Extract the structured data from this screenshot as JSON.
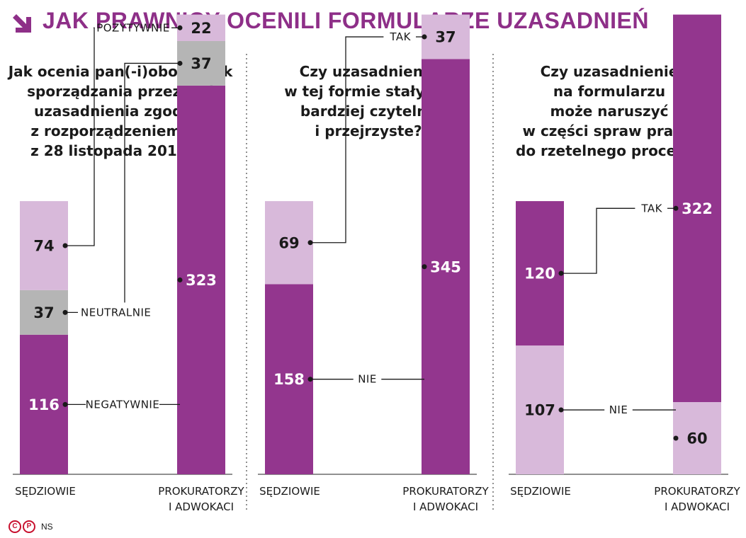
{
  "header": {
    "title": "JAK PRAWNICY OCENILI FORMULARZE UZASADNIEŃ"
  },
  "colors": {
    "purple": "#93368e",
    "light_purple": "#d8b9da",
    "gray": "#b5b5b5",
    "title_purple": "#8e2f88",
    "logo_red": "#c8102e"
  },
  "footer": {
    "logo_left": "C",
    "logo_right": "P",
    "source": "NS"
  },
  "chart_data": [
    {
      "type": "bar",
      "stacked": true,
      "title": "Jak ocenia pan(-i)obowiązek sporządzania przez sąd uzasadnienia zgodnie z rozporządzeniem MS z 28 listopada 2019 r.?",
      "title_lines": [
        "Jak ocenia pan(-i)obowiązek",
        "sporządzania przez sąd",
        "uzasadnienia zgodnie",
        "z rozporządzeniem MS",
        "z 28 listopada 2019 r.?"
      ],
      "categories": [
        "SĘDZIOWIE",
        "PROKURATORZY I ADWOKACI"
      ],
      "category_lines": [
        [
          "SĘDZIOWIE"
        ],
        [
          "PROKURATORZY",
          "I ADWOKACI"
        ]
      ],
      "series": [
        {
          "name": "NEGATYWNIE",
          "values": [
            116,
            323
          ],
          "color": "#93368e",
          "label_color": "#ffffff"
        },
        {
          "name": "NEUTRALNIE",
          "values": [
            37,
            37
          ],
          "color": "#b5b5b5",
          "label_color": "#1a1a1a"
        },
        {
          "name": "POZYTYWNIE",
          "values": [
            74,
            22
          ],
          "color": "#d8b9da",
          "label_color": "#1a1a1a"
        }
      ]
    },
    {
      "type": "bar",
      "stacked": true,
      "title": "Czy uzasadnienia w tej formie stały się bardziej czytelne i przejrzyste?",
      "title_lines": [
        "Czy uzasadnienia",
        "w tej formie stały się",
        "bardziej czytelne",
        "i przejrzyste?"
      ],
      "categories": [
        "SĘDZIOWIE",
        "PROKURATORZY I ADWOKACI"
      ],
      "category_lines": [
        [
          "SĘDZIOWIE"
        ],
        [
          "PROKURATORZY",
          "I ADWOKACI"
        ]
      ],
      "series": [
        {
          "name": "NIE",
          "values": [
            158,
            345
          ],
          "color": "#93368e",
          "label_color": "#ffffff"
        },
        {
          "name": "TAK",
          "values": [
            69,
            37
          ],
          "color": "#d8b9da",
          "label_color": "#1a1a1a"
        }
      ]
    },
    {
      "type": "bar",
      "stacked": true,
      "title": "Czy uzasadnienie na formularzu może naruszyć w części spraw prawo do rzetelnego procesu?",
      "title_lines": [
        "Czy uzasadnienie",
        "na formularzu",
        "może naruszyć",
        "w części spraw prawo",
        "do rzetelnego procesu?"
      ],
      "categories": [
        "SĘDZIOWIE",
        "PROKURATORZY I ADWOKACI"
      ],
      "category_lines": [
        [
          "SĘDZIOWIE"
        ],
        [
          "PROKURATORZY",
          "I ADWOKACI"
        ]
      ],
      "series": [
        {
          "name": "NIE",
          "values": [
            107,
            60
          ],
          "color": "#d8b9da",
          "label_color": "#1a1a1a"
        },
        {
          "name": "TAK",
          "values": [
            120,
            322
          ],
          "color": "#93368e",
          "label_color": "#ffffff"
        }
      ]
    }
  ]
}
